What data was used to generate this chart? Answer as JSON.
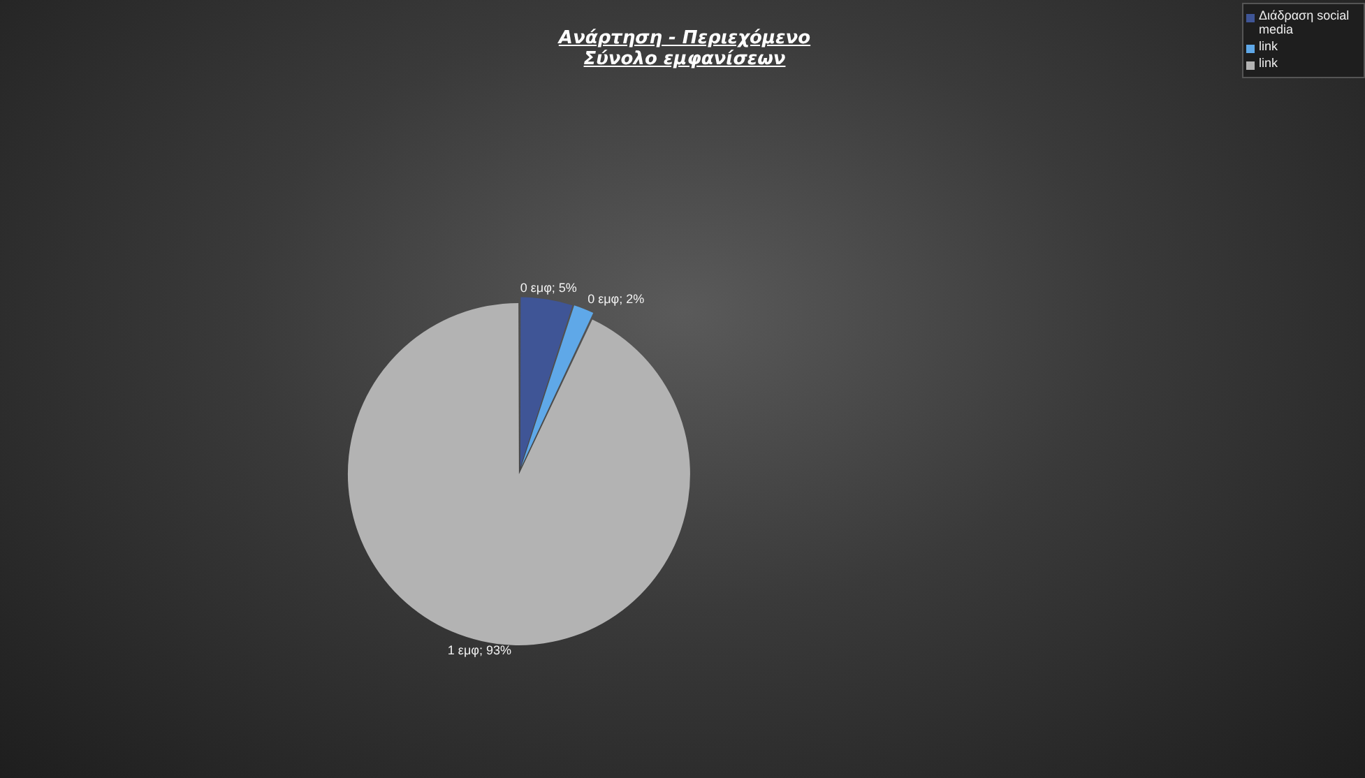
{
  "chart_data": {
    "type": "pie",
    "title": "Ανάρτηση - Περιεχόμενο\nΣύνολο εμφανίσεων",
    "categories": [
      "Διάδραση social media",
      "link",
      "link"
    ],
    "values": [
      5,
      2,
      93
    ],
    "colors": [
      "#3f5596",
      "#5fa8e8",
      "#b3b3b3"
    ],
    "value_labels": [
      "0 εμφ; 5%",
      "0 εμφ; 2%",
      "1 εμφ; 93%"
    ],
    "legend": "top right"
  }
}
